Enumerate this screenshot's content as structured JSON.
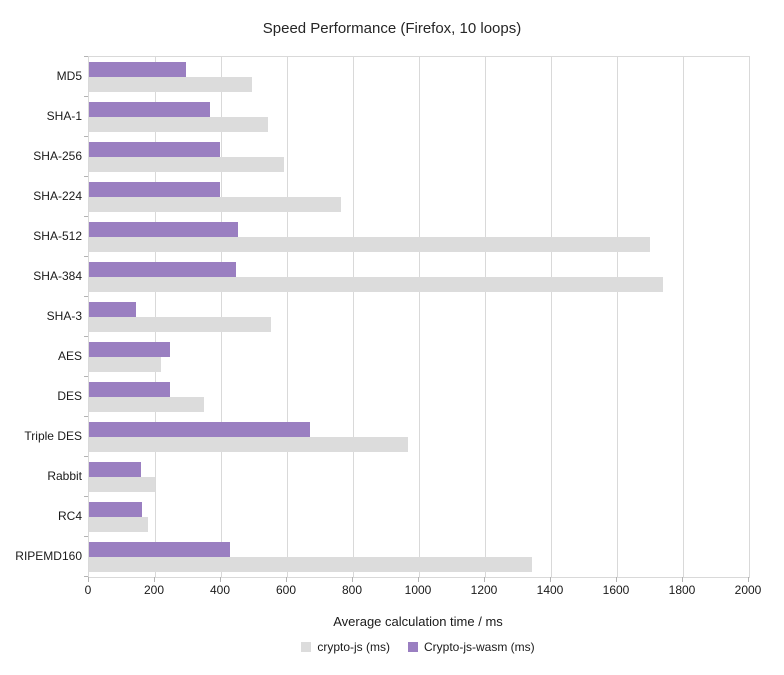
{
  "chart_data": {
    "type": "bar",
    "orientation": "horizontal",
    "title": "Speed Performance (Firefox, 10 loops)",
    "xlabel": "Average calculation time / ms",
    "xlim": [
      0,
      2000
    ],
    "xticks": [
      0,
      200,
      400,
      600,
      800,
      1000,
      1200,
      1400,
      1600,
      1800,
      2000
    ],
    "grid": true,
    "legend_position": "bottom",
    "categories": [
      "MD5",
      "SHA-1",
      "SHA-256",
      "SHA-224",
      "SHA-512",
      "SHA-384",
      "SHA-3",
      "AES",
      "DES",
      "Triple DES",
      "Rabbit",
      "RC4",
      "RIPEMD160"
    ],
    "series": [
      {
        "name": "crypto-js (ms)",
        "color": "#dcdcdc",
        "values": [
          495,
          543,
          592,
          764,
          1700,
          1740,
          553,
          217,
          347,
          967,
          199,
          179,
          1342
        ]
      },
      {
        "name": "Crypto-js-wasm (ms)",
        "color": "#9a7fc1",
        "values": [
          293,
          367,
          398,
          397,
          452,
          445,
          141,
          244,
          244,
          671,
          158,
          161,
          426
        ]
      }
    ]
  }
}
